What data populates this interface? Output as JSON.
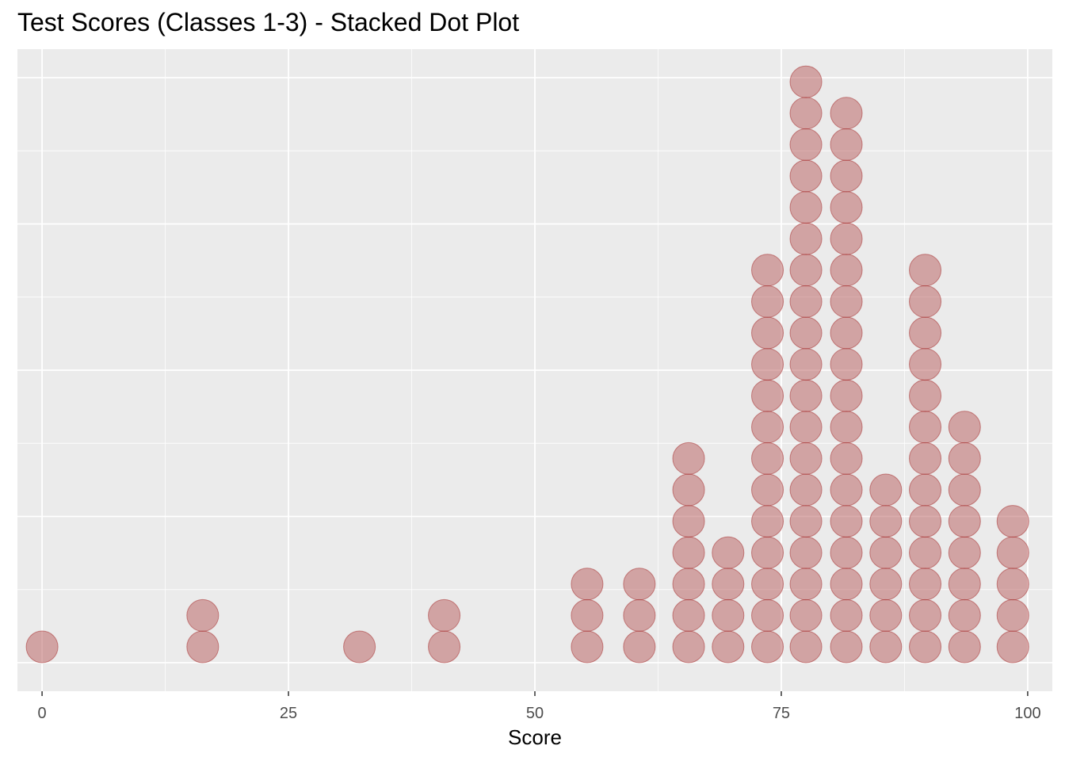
{
  "chart_data": {
    "type": "scatter",
    "subtype": "stacked-dot-plot",
    "title": "Test Scores (Classes 1-3) - Stacked Dot Plot",
    "xlabel": "Score",
    "ylabel": "",
    "xlim": [
      -2.5,
      102.5
    ],
    "x_ticks": [
      0,
      25,
      50,
      75,
      100
    ],
    "x_tick_labels": [
      "0",
      "25",
      "50",
      "75",
      "100"
    ],
    "y_tick_labels_shown": false,
    "grid": true,
    "legend": "none",
    "colors": {
      "dot_fill": "#b85c5c",
      "dot_fill_opacity": 0.5,
      "dot_stroke": "#a83232",
      "panel_background": "#ebebeb",
      "grid_major": "#ffffff"
    },
    "stacks": [
      {
        "x": 0,
        "count": 1
      },
      {
        "x": 16.3,
        "count": 2
      },
      {
        "x": 32.2,
        "count": 1
      },
      {
        "x": 40.8,
        "count": 2
      },
      {
        "x": 55.3,
        "count": 3
      },
      {
        "x": 60.6,
        "count": 3
      },
      {
        "x": 65.6,
        "count": 7
      },
      {
        "x": 69.6,
        "count": 4
      },
      {
        "x": 73.6,
        "count": 13
      },
      {
        "x": 77.5,
        "count": 19
      },
      {
        "x": 81.6,
        "count": 18
      },
      {
        "x": 85.6,
        "count": 6
      },
      {
        "x": 89.6,
        "count": 13
      },
      {
        "x": 93.6,
        "count": 8
      },
      {
        "x": 98.5,
        "count": 5
      }
    ]
  }
}
